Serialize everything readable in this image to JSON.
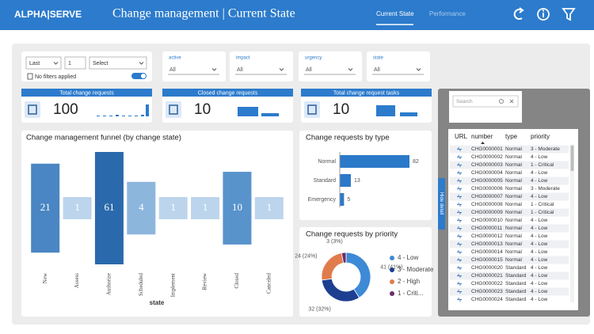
{
  "header": {
    "logo": "ALPHA|SERVE",
    "title": "Change management | Current State",
    "tabs": [
      "Current State",
      "Performance"
    ]
  },
  "filters": {
    "period": "Last",
    "count": "1",
    "unit": "Select",
    "status": "No filters applied",
    "slicers": [
      {
        "label": "active",
        "value": "All"
      },
      {
        "label": "impact",
        "value": "All"
      },
      {
        "label": "urgency",
        "value": "All"
      },
      {
        "label": "state",
        "value": "All"
      }
    ]
  },
  "kpis": [
    {
      "title": "Total change requests",
      "value": 100
    },
    {
      "title": "Closed change requests",
      "value": 10
    },
    {
      "title": "Total change request tasks",
      "value": 10
    }
  ],
  "chart_data": [
    {
      "type": "funnel",
      "title": "Change management funnel (by change state)",
      "x_label": "state",
      "categories": [
        "New",
        "Assess",
        "Authorize",
        "Scheduled",
        "Implement",
        "Review",
        "Closed",
        "Canceled"
      ],
      "values": [
        21,
        1,
        61,
        4,
        1,
        1,
        10,
        1
      ],
      "colors": [
        "#4a86c3",
        "#bcd5ec",
        "#2a69ab",
        "#8db6dd",
        "#bcd5ec",
        "#bcd5ec",
        "#5893cc",
        "#bcd5ec"
      ]
    },
    {
      "type": "bar",
      "title": "Change requests by type",
      "categories": [
        "Normal",
        "Standard",
        "Emergency"
      ],
      "values": [
        82,
        13,
        5
      ],
      "color": "#2b79c9"
    },
    {
      "type": "pie",
      "title": "Change requests by priority",
      "categories": [
        "4 - Low",
        "3 - Moderate",
        "2 - High",
        "1 - Criti..."
      ],
      "values": [
        41,
        32,
        24,
        3
      ],
      "value_labels": [
        "41 (41%)",
        "32 (32%)",
        "24 (24%)",
        "3 (3%)"
      ],
      "colors": [
        "#3d8ad6",
        "#1c3f91",
        "#e07b4c",
        "#6c2d6e"
      ]
    }
  ],
  "detail": {
    "toggle": "Hide detail",
    "search": "Search",
    "table": {
      "columns": [
        "URL",
        "number",
        "type",
        "priority"
      ],
      "rows": [
        [
          "CHG0000001",
          "Normal",
          "3 - Moderate"
        ],
        [
          "CHG0000002",
          "Normal",
          "4 - Low"
        ],
        [
          "CHG0000003",
          "Normal",
          "1 - Critical"
        ],
        [
          "CHG0000004",
          "Normal",
          "4 - Low"
        ],
        [
          "CHG0000005",
          "Normal",
          "4 - Low"
        ],
        [
          "CHG0000006",
          "Normal",
          "3 - Moderate"
        ],
        [
          "CHG0000007",
          "Normal",
          "4 - Low"
        ],
        [
          "CHG0000008",
          "Normal",
          "1 - Critical"
        ],
        [
          "CHG0000009",
          "Normal",
          "1 - Critical"
        ],
        [
          "CHG0000010",
          "Normal",
          "4 - Low"
        ],
        [
          "CHG0000011",
          "Normal",
          "4 - Low"
        ],
        [
          "CHG0000012",
          "Normal",
          "4 - Low"
        ],
        [
          "CHG0000013",
          "Normal",
          "4 - Low"
        ],
        [
          "CHG0000014",
          "Normal",
          "4 - Low"
        ],
        [
          "CHG0000015",
          "Normal",
          "4 - Low"
        ],
        [
          "CHG0000020",
          "Standard",
          "4 - Low"
        ],
        [
          "CHG0000021",
          "Standard",
          "4 - Low"
        ],
        [
          "CHG0000022",
          "Standard",
          "4 - Low"
        ],
        [
          "CHG0000023",
          "Standard",
          "4 - Low"
        ],
        [
          "CHG0000024",
          "Standard",
          "4 - Low"
        ]
      ]
    }
  }
}
